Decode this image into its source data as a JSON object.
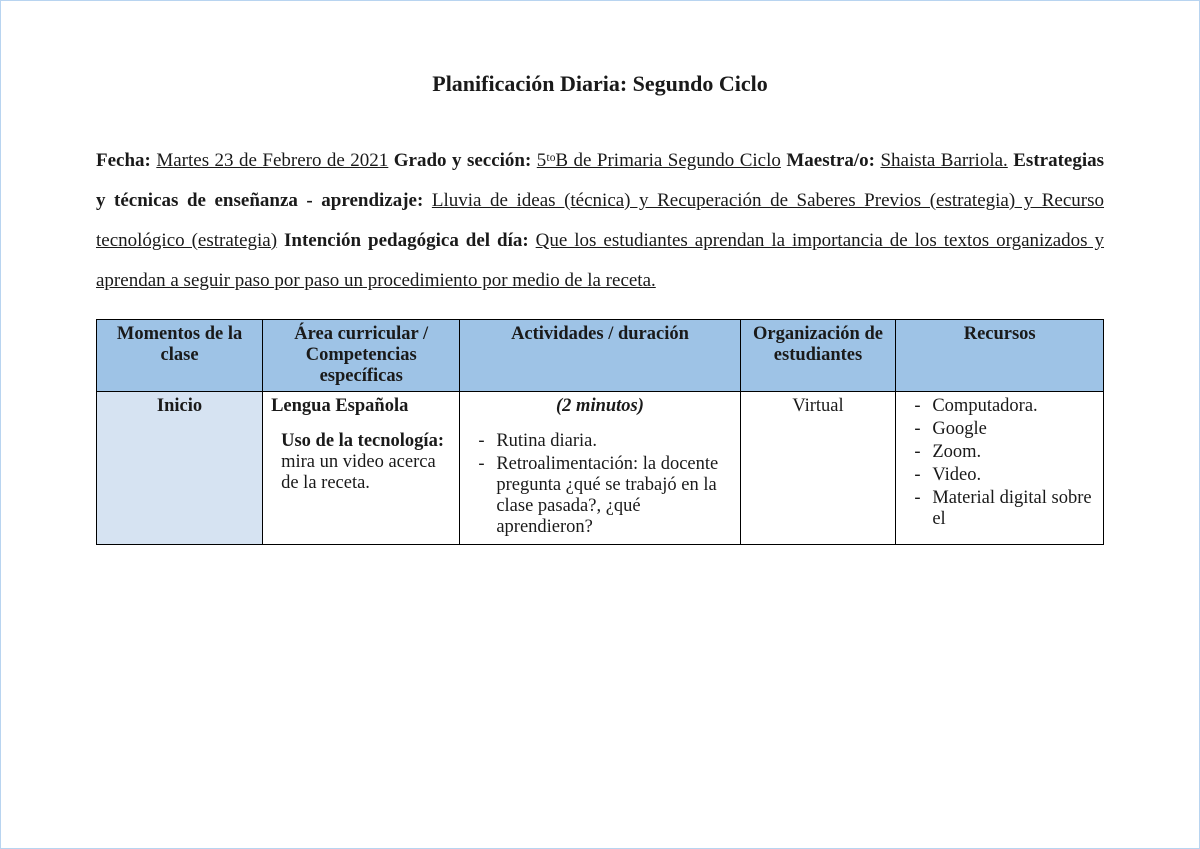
{
  "title": "Planificación Diaria: Segundo Ciclo",
  "meta": {
    "fecha_label": "Fecha:",
    "fecha_val": "Martes 23 de Febrero de 2021",
    "grado_label": "Grado y sección:",
    "grado_val": "5ᵗᵒB de Primaria Segundo Ciclo",
    "maestra_label": "Maestra/o:",
    "maestra_val": "Shaista Barriola.",
    "estrategias_label": "Estrategias y técnicas de enseñanza - aprendizaje:",
    "estrategias_val": " Lluvia de ideas (técnica) y Recuperación de Saberes Previos (estrategia) y Recurso tecnológico (estrategia)",
    "intencion_label": "Intención pedagógica del día:",
    "intencion_val": " Que los estudiantes aprendan la importancia de los textos organizados y aprendan a seguir paso por paso un procedimiento por medio de la receta."
  },
  "table": {
    "headers": {
      "c0": "Momentos de la clase",
      "c1": "Área curricular / Competencias específicas",
      "c2": "Actividades / duración",
      "c3": "Organización de estudiantes",
      "c4": "Recursos"
    },
    "row": {
      "momento": "Inicio",
      "area_title": "Lengua Española",
      "area_sub_bold": "Uso de la tecnología:",
      "area_sub_rest": " mira un video acerca de la receta.",
      "duracion": "(2 minutos)",
      "actividades": [
        "Rutina diaria.",
        "Retroalimentación: la docente pregunta ¿qué se trabajó en la clase pasada?, ¿qué aprendieron?"
      ],
      "organizacion": "Virtual",
      "recursos": [
        "Computadora.",
        "Google",
        "Zoom.",
        "Video.",
        "Material digital sobre el"
      ]
    }
  },
  "colors": {
    "page_border": "#b8d4f0",
    "header_bg": "#9ec3e6",
    "moment_bg": "#d6e3f2",
    "cell_border": "#000000",
    "text": "#1a1a1a"
  }
}
